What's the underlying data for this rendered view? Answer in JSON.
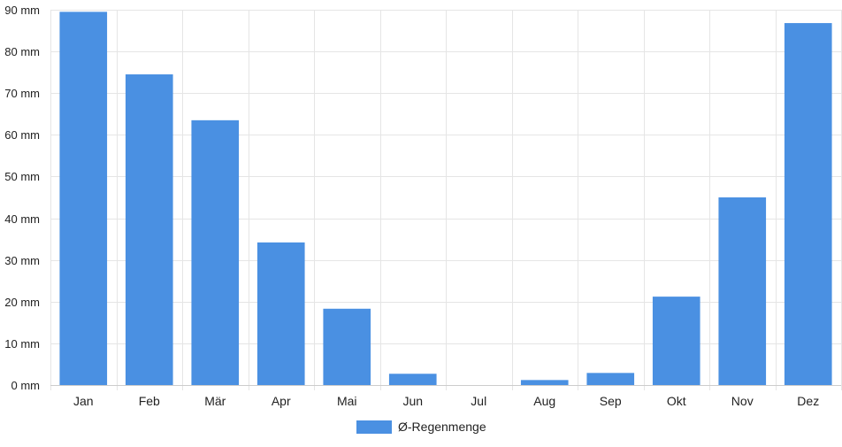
{
  "chart_data": {
    "type": "bar",
    "categories": [
      "Jan",
      "Feb",
      "Mär",
      "Apr",
      "Mai",
      "Jun",
      "Jul",
      "Aug",
      "Sep",
      "Okt",
      "Nov",
      "Dez"
    ],
    "series": [
      {
        "name": "Ø-Regenmenge",
        "values": [
          89.5,
          74.5,
          63.5,
          34.2,
          18.3,
          2.7,
          0,
          1.2,
          2.9,
          21.2,
          45.0,
          86.8
        ]
      }
    ],
    "ylim": [
      0,
      90
    ],
    "yticks": [
      0,
      10,
      20,
      30,
      40,
      50,
      60,
      70,
      80,
      90
    ],
    "ytick_suffix": " mm",
    "grid": true,
    "legend": "bottom-center",
    "colors": {
      "bar": "#4a90e2",
      "grid": "#e5e5e5",
      "axis": "#cccccc"
    }
  }
}
